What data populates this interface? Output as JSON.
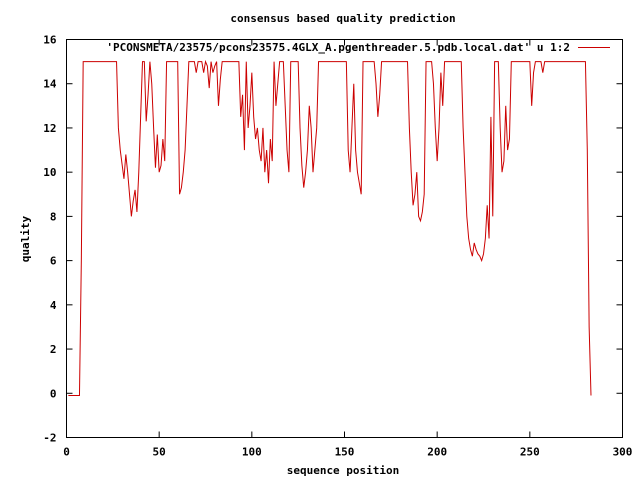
{
  "chart_data": {
    "type": "line",
    "title": "consensus based quality prediction",
    "xlabel": "sequence position",
    "ylabel": "quality",
    "xlim": [
      0,
      300
    ],
    "ylim": [
      -2,
      16
    ],
    "xticks": [
      0,
      50,
      100,
      150,
      200,
      250,
      300
    ],
    "yticks": [
      -2,
      0,
      2,
      4,
      6,
      8,
      10,
      12,
      14,
      16
    ],
    "grid": false,
    "legend_position": "top-right",
    "series": [
      {
        "name": "'PCONSMETA/23575/pcons23575.4GLX_A.pgenthreader.5.pdb.local.dat' u 1:2",
        "color": "#cc0000",
        "points": [
          [
            1,
            -0.1
          ],
          [
            7,
            -0.1
          ],
          [
            8,
            6
          ],
          [
            9,
            15
          ],
          [
            27,
            15
          ],
          [
            28,
            12
          ],
          [
            29,
            11
          ],
          [
            31,
            9.7
          ],
          [
            32,
            10.8
          ],
          [
            33,
            10
          ],
          [
            34,
            9
          ],
          [
            35,
            8
          ],
          [
            36,
            8.7
          ],
          [
            37,
            9.2
          ],
          [
            38,
            8.2
          ],
          [
            39,
            10
          ],
          [
            40,
            12.5
          ],
          [
            41,
            15
          ],
          [
            42,
            15
          ],
          [
            43,
            12.3
          ],
          [
            44,
            13.5
          ],
          [
            45,
            15
          ],
          [
            46,
            14
          ],
          [
            47,
            12
          ],
          [
            48,
            10.2
          ],
          [
            49,
            11.7
          ],
          [
            50,
            10
          ],
          [
            51,
            10.3
          ],
          [
            52,
            11.5
          ],
          [
            53,
            10.5
          ],
          [
            54,
            15
          ],
          [
            60,
            15
          ],
          [
            61,
            9
          ],
          [
            62,
            9.3
          ],
          [
            63,
            10
          ],
          [
            64,
            11
          ],
          [
            65,
            13
          ],
          [
            66,
            15
          ],
          [
            69,
            15
          ],
          [
            70,
            14.5
          ],
          [
            71,
            15
          ],
          [
            73,
            15
          ],
          [
            74,
            14.5
          ],
          [
            75,
            15
          ],
          [
            76,
            14.8
          ],
          [
            77,
            13.8
          ],
          [
            78,
            15
          ],
          [
            79,
            14.5
          ],
          [
            80,
            14.8
          ],
          [
            81,
            15
          ],
          [
            82,
            13
          ],
          [
            83,
            14.2
          ],
          [
            84,
            15
          ],
          [
            93,
            15
          ],
          [
            94,
            12.5
          ],
          [
            95,
            13.5
          ],
          [
            96,
            11
          ],
          [
            97,
            15
          ],
          [
            98,
            12
          ],
          [
            99,
            13
          ],
          [
            100,
            14.5
          ],
          [
            101,
            12.5
          ],
          [
            102,
            11.5
          ],
          [
            103,
            12
          ],
          [
            104,
            11
          ],
          [
            105,
            10.5
          ],
          [
            106,
            12
          ],
          [
            107,
            10
          ],
          [
            108,
            11
          ],
          [
            109,
            9.5
          ],
          [
            110,
            11.5
          ],
          [
            111,
            10.5
          ],
          [
            112,
            15
          ],
          [
            113,
            13
          ],
          [
            114,
            14
          ],
          [
            115,
            15
          ],
          [
            117,
            15
          ],
          [
            118,
            13
          ],
          [
            119,
            11
          ],
          [
            120,
            10
          ],
          [
            121,
            15
          ],
          [
            125,
            15
          ],
          [
            126,
            12
          ],
          [
            127,
            10.3
          ],
          [
            128,
            9.3
          ],
          [
            129,
            10
          ],
          [
            130,
            11
          ],
          [
            131,
            13
          ],
          [
            132,
            12
          ],
          [
            133,
            10
          ],
          [
            134,
            11
          ],
          [
            135,
            12
          ],
          [
            136,
            15
          ],
          [
            151,
            15
          ],
          [
            152,
            11
          ],
          [
            153,
            10
          ],
          [
            154,
            12
          ],
          [
            155,
            14
          ],
          [
            156,
            11
          ],
          [
            157,
            10
          ],
          [
            158,
            9.5
          ],
          [
            159,
            9
          ],
          [
            160,
            15
          ],
          [
            166,
            15
          ],
          [
            167,
            14
          ],
          [
            168,
            12.5
          ],
          [
            169,
            13.5
          ],
          [
            170,
            15
          ],
          [
            184,
            15
          ],
          [
            185,
            12
          ],
          [
            186,
            10
          ],
          [
            187,
            8.5
          ],
          [
            188,
            9
          ],
          [
            189,
            10
          ],
          [
            190,
            8
          ],
          [
            191,
            7.8
          ],
          [
            192,
            8.2
          ],
          [
            193,
            9
          ],
          [
            194,
            15
          ],
          [
            197,
            15
          ],
          [
            198,
            14
          ],
          [
            199,
            12
          ],
          [
            200,
            10.5
          ],
          [
            201,
            12
          ],
          [
            202,
            14.5
          ],
          [
            203,
            13
          ],
          [
            204,
            15
          ],
          [
            213,
            15
          ],
          [
            214,
            12
          ],
          [
            215,
            10
          ],
          [
            216,
            8
          ],
          [
            217,
            7
          ],
          [
            218,
            6.5
          ],
          [
            219,
            6.2
          ],
          [
            220,
            6.8
          ],
          [
            221,
            6.5
          ],
          [
            222,
            6.3
          ],
          [
            223,
            6.2
          ],
          [
            224,
            6
          ],
          [
            225,
            6.3
          ],
          [
            226,
            7
          ],
          [
            227,
            8.5
          ],
          [
            228,
            7
          ],
          [
            229,
            12.5
          ],
          [
            230,
            8
          ],
          [
            231,
            15
          ],
          [
            233,
            15
          ],
          [
            234,
            12
          ],
          [
            235,
            10
          ],
          [
            236,
            10.5
          ],
          [
            237,
            13
          ],
          [
            238,
            11
          ],
          [
            239,
            11.5
          ],
          [
            240,
            15
          ],
          [
            250,
            15
          ],
          [
            251,
            13
          ],
          [
            252,
            14.5
          ],
          [
            253,
            15
          ],
          [
            256,
            15
          ],
          [
            257,
            14.5
          ],
          [
            258,
            15
          ],
          [
            280,
            15
          ],
          [
            281,
            11
          ],
          [
            282,
            3
          ],
          [
            283,
            -0.1
          ]
        ]
      }
    ]
  }
}
